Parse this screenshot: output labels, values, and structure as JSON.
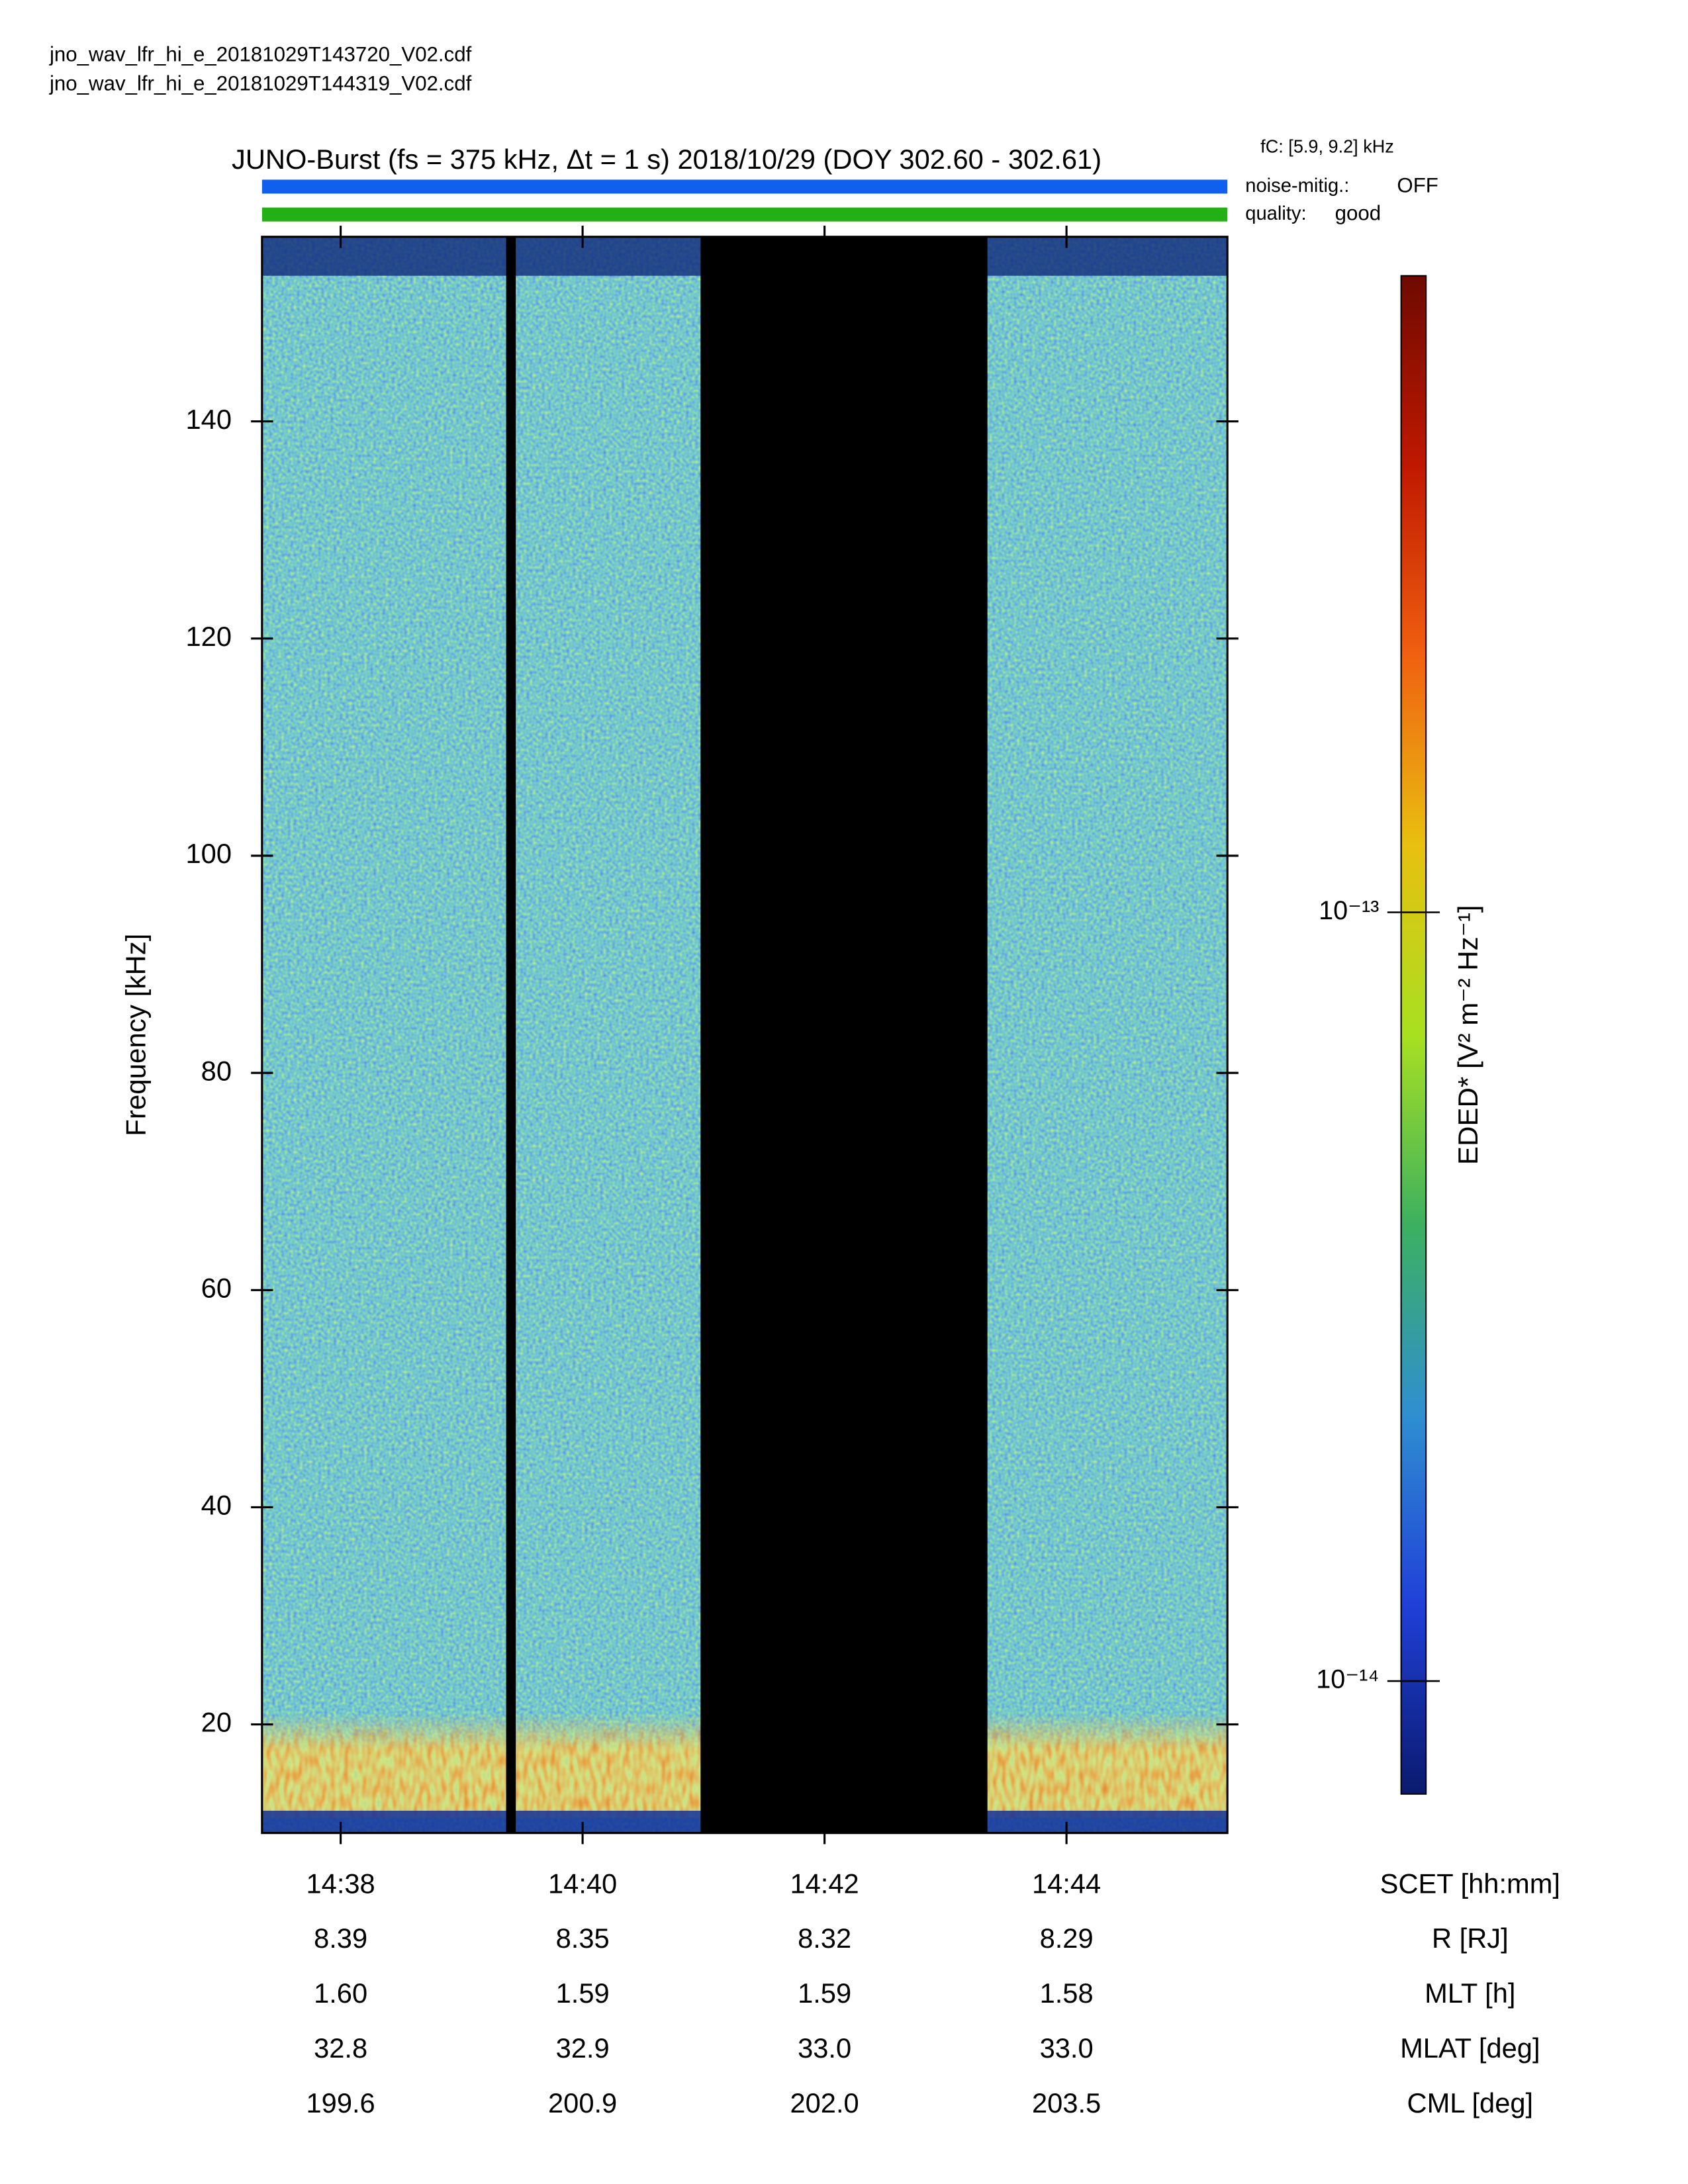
{
  "files": [
    "jno_wav_lfr_hi_e_20181029T143720_V02.cdf",
    "jno_wav_lfr_hi_e_20181029T144319_V02.cdf"
  ],
  "chart_data": {
    "type": "spectrogram",
    "title": "JUNO-Burst (fs = 375 kHz, Δt = 1 s)  2018/10/29 (DOY 302.60 - 302.61)",
    "fc_label": "fC: [5.9, 9.2] kHz",
    "status": [
      {
        "name": "noise-mitig.:",
        "value": "OFF",
        "color": "#1060f0"
      },
      {
        "name": "quality:",
        "value": "good",
        "color": "#22b014"
      }
    ],
    "y_label": "Frequency [kHz]",
    "ylim": [
      10,
      157
    ],
    "yticks": [
      20,
      40,
      60,
      80,
      100,
      120,
      140
    ],
    "x_label": "SCET [hh:mm]",
    "xlim": [
      877.35,
      885.33
    ],
    "xticks": [
      {
        "value": 878,
        "label": "14:38"
      },
      {
        "value": 880,
        "label": "14:40"
      },
      {
        "value": 882,
        "label": "14:42"
      },
      {
        "value": 884,
        "label": "14:44"
      }
    ],
    "colorbar": {
      "label": "EDED* [V² m⁻² Hz⁻¹]",
      "log": true,
      "zlim": [
        7.13e-15,
        6.73e-13
      ],
      "zticks": [
        {
          "value": 1e-14,
          "label": "10⁻¹⁴"
        },
        {
          "value": 1e-13,
          "label": "10⁻¹³"
        }
      ],
      "colors": [
        "#0a1a6e",
        "#2040d8",
        "#2f8fd0",
        "#3cb060",
        "#a8e020",
        "#e8c010",
        "#f06010",
        "#c01800",
        "#6e0a00"
      ]
    },
    "ephemeris": [
      {
        "label": "R [RJ]",
        "values": [
          "8.39",
          "8.35",
          "8.32",
          "8.29"
        ]
      },
      {
        "label": "MLT [h]",
        "values": [
          "1.60",
          "1.59",
          "1.59",
          "1.58"
        ]
      },
      {
        "label": "MLAT [deg]",
        "values": [
          "32.8",
          "32.9",
          "33.0",
          "33.0"
        ]
      },
      {
        "label": "CML [deg]",
        "values": [
          "199.6",
          "200.9",
          "202.0",
          "203.5"
        ]
      }
    ]
  }
}
